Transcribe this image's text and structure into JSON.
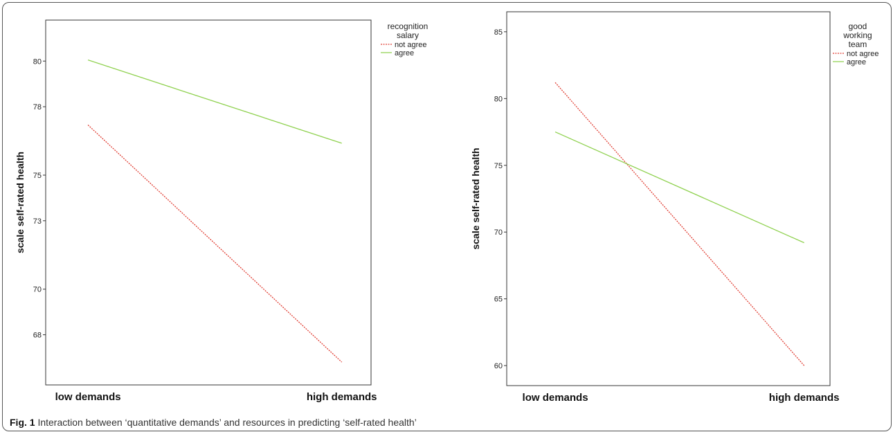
{
  "chart_data": [
    {
      "type": "line",
      "title": "",
      "xlabel": "",
      "ylabel": "scale self-rated health",
      "categories": [
        "low demands",
        "high demands"
      ],
      "ylim": [
        65.8,
        81.8
      ],
      "yticks": [
        68,
        70,
        73,
        75,
        78,
        80
      ],
      "grid": false,
      "legend_title": "recognition salary",
      "legend_position": "right",
      "series": [
        {
          "name": "not agree",
          "values": [
            77.2,
            66.8
          ],
          "color": "#e03c31",
          "dash": "dotted"
        },
        {
          "name": "agree",
          "values": [
            80.05,
            76.4
          ],
          "color": "#8fd14f",
          "dash": "solid"
        }
      ]
    },
    {
      "type": "line",
      "title": "",
      "xlabel": "",
      "ylabel": "scale self-rated health",
      "categories": [
        "low demands",
        "high demands"
      ],
      "ylim": [
        58.5,
        86.5
      ],
      "yticks": [
        60,
        65,
        70,
        75,
        80,
        85
      ],
      "grid": false,
      "legend_title": "good working team",
      "legend_position": "right",
      "series": [
        {
          "name": "not agree",
          "values": [
            81.2,
            60.0
          ],
          "color": "#e03c31",
          "dash": "dotted"
        },
        {
          "name": "agree",
          "values": [
            77.5,
            69.2
          ],
          "color": "#8fd14f",
          "dash": "solid"
        }
      ]
    }
  ],
  "caption": {
    "label": "Fig. 1",
    "text": "Interaction between ‘quantitative demands’ and resources in predicting ‘self-rated health’"
  }
}
